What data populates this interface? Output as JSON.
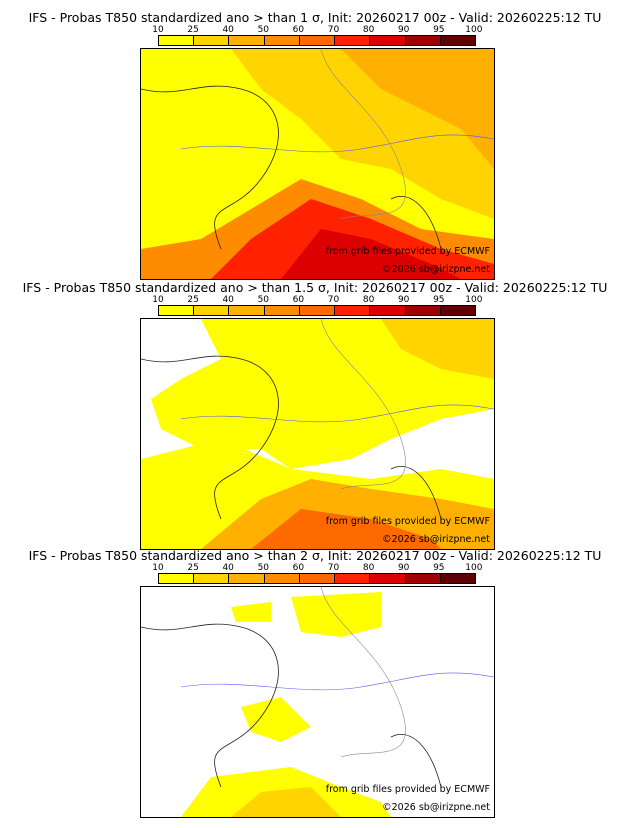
{
  "legend": {
    "ticks": [
      "10",
      "25",
      "40",
      "50",
      "60",
      "70",
      "80",
      "90",
      "95",
      "100"
    ],
    "colors": [
      "#ffff00",
      "#ffd400",
      "#ffb000",
      "#ff8c00",
      "#ff6a00",
      "#ff2200",
      "#dd0000",
      "#a00000",
      "#600000"
    ]
  },
  "panels": [
    {
      "title": "IFS - Probas T850  standardized ano > than 1 σ, Init: 20260217 00z - Valid: 20260225:12 TU"
    },
    {
      "title": "IFS - Probas T850  standardized ano > than 1.5 σ, Init: 20260217 00z - Valid: 20260225:12 TU"
    },
    {
      "title": "IFS - Probas T850  standardized ano > than 2 σ, Init: 20260217 00z - Valid: 20260225:12 TU"
    }
  ],
  "credits": {
    "source": "from grib files provided by ECMWF",
    "copyright": "©2026 sb@irizpne.net"
  }
}
